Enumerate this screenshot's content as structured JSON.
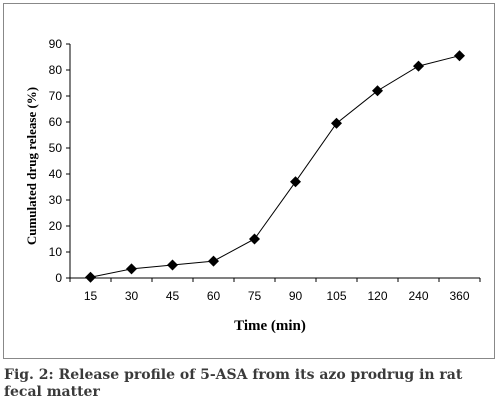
{
  "chart_data": {
    "type": "line",
    "categories": [
      "15",
      "30",
      "45",
      "60",
      "75",
      "90",
      "105",
      "120",
      "240",
      "360"
    ],
    "series": [
      {
        "values": [
          0.3,
          3.5,
          5,
          6.5,
          15,
          37,
          59.5,
          72,
          81.5,
          85.5
        ]
      }
    ],
    "ylim": [
      0,
      90
    ],
    "yticks": [
      0,
      10,
      20,
      30,
      40,
      50,
      60,
      70,
      80,
      90
    ],
    "xlabel": "Time (min)",
    "ylabel": "Cumulated drug release (%)",
    "marker": "diamond",
    "grid": false,
    "colors": {
      "line": "#000000",
      "marker": "#000000",
      "axis": "#000000"
    }
  },
  "caption": {
    "text": "Fig. 2: Release profile of 5-ASA from its azo prodrug in rat fecal matter"
  }
}
